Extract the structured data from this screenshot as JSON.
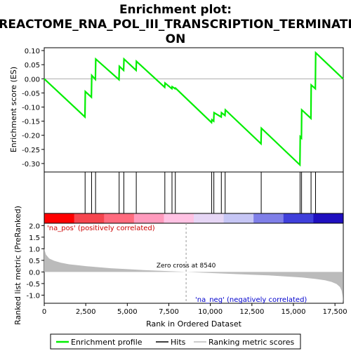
{
  "chart_data": {
    "type": "line",
    "title": "Enrichment plot: REACTOME_RNA_POL_III_TRANSCRIPTION_TERMINATION",
    "title_lines": [
      "Enrichment plot:",
      "REACTOME_RNA_POL_III_TRANSCRIPTION_TERMINATI",
      "ON"
    ],
    "top_panel": {
      "ylabel": "Enrichment score (ES)",
      "ylim": [
        -0.33,
        0.11
      ],
      "yticks": [
        0.1,
        0.05,
        0.0,
        -0.05,
        -0.1,
        -0.15,
        -0.2,
        -0.25,
        -0.3
      ],
      "ytick_labels": [
        "0.10",
        "0.05",
        "0.00",
        "-0.05",
        "-0.10",
        "-0.15",
        "-0.20",
        "-0.25",
        "-0.30"
      ],
      "series": [
        {
          "name": "Enrichment profile",
          "color": "#00ee00",
          "points": [
            [
              0,
              0.0
            ],
            [
              2450,
              -0.135
            ],
            [
              2470,
              -0.045
            ],
            [
              2840,
              -0.065
            ],
            [
              2860,
              0.012
            ],
            [
              3080,
              -0.002
            ],
            [
              3100,
              0.07
            ],
            [
              4500,
              -0.003
            ],
            [
              4520,
              0.044
            ],
            [
              4780,
              0.03
            ],
            [
              4800,
              0.07
            ],
            [
              5530,
              0.03
            ],
            [
              5550,
              0.062
            ],
            [
              7250,
              -0.03
            ],
            [
              7270,
              -0.015
            ],
            [
              7680,
              -0.035
            ],
            [
              7700,
              -0.028
            ],
            [
              7880,
              -0.035
            ],
            [
              7900,
              -0.033
            ],
            [
              10070,
              -0.155
            ],
            [
              10090,
              -0.145
            ],
            [
              10200,
              -0.15
            ],
            [
              10220,
              -0.12
            ],
            [
              10650,
              -0.135
            ],
            [
              10670,
              -0.12
            ],
            [
              10880,
              -0.13
            ],
            [
              10900,
              -0.11
            ],
            [
              13050,
              -0.23
            ],
            [
              13070,
              -0.175
            ],
            [
              15390,
              -0.305
            ],
            [
              15410,
              -0.205
            ],
            [
              15480,
              -0.21
            ],
            [
              15500,
              -0.11
            ],
            [
              16050,
              -0.14
            ],
            [
              16070,
              -0.022
            ],
            [
              16320,
              -0.035
            ],
            [
              16340,
              0.092
            ],
            [
              17990,
              0.0
            ]
          ]
        }
      ]
    },
    "hits": [
      2460,
      2850,
      3090,
      4510,
      4790,
      5540,
      7260,
      7690,
      7890,
      10080,
      10210,
      10660,
      10890,
      13060,
      15400,
      15490,
      16060,
      16330
    ],
    "rank_colorbar": [
      "#ff0000",
      "#f5454e",
      "#ff6b7e",
      "#ff9bbd",
      "#ffc2e3",
      "#e6d6f5",
      "#c6c6f5",
      "#7f7fe8",
      "#3f3fdb",
      "#1f0fbf"
    ],
    "bottom_panel": {
      "ylabel": "Ranked list metric (PreRanked)",
      "ylim": [
        -1.35,
        2.1
      ],
      "yticks": [
        2.0,
        1.5,
        1.0,
        0.5,
        0.0,
        -0.5,
        -1.0
      ],
      "ytick_labels": [
        "2.0",
        "1.5",
        "1.0",
        "0.5",
        "0.0",
        "-0.5",
        "-1.0"
      ],
      "metric_curve": [
        [
          0,
          1.0
        ],
        [
          100,
          0.75
        ],
        [
          300,
          0.58
        ],
        [
          600,
          0.48
        ],
        [
          1000,
          0.4
        ],
        [
          1500,
          0.33
        ],
        [
          2000,
          0.29
        ],
        [
          2500,
          0.25
        ],
        [
          3000,
          0.22
        ],
        [
          4000,
          0.16
        ],
        [
          5000,
          0.12
        ],
        [
          6000,
          0.08
        ],
        [
          7000,
          0.05
        ],
        [
          8000,
          0.02
        ],
        [
          8540,
          0.0
        ],
        [
          9500,
          -0.03
        ],
        [
          10500,
          -0.06
        ],
        [
          11500,
          -0.09
        ],
        [
          12500,
          -0.12
        ],
        [
          13500,
          -0.15
        ],
        [
          14500,
          -0.19
        ],
        [
          15500,
          -0.24
        ],
        [
          16300,
          -0.3
        ],
        [
          16900,
          -0.36
        ],
        [
          17300,
          -0.43
        ],
        [
          17600,
          -0.52
        ],
        [
          17800,
          -0.65
        ],
        [
          17900,
          -0.8
        ],
        [
          17960,
          -1.05
        ],
        [
          17990,
          -1.3
        ]
      ],
      "pos_label": "'na_pos' (positively correlated)",
      "neg_label": "'na_neg' (negatively correlated)",
      "zero_cross_label": "Zero cross at 8540",
      "zero_cross": 8540
    },
    "xlabel": "Rank in Ordered Dataset",
    "xlim": [
      0,
      18000
    ],
    "xticks": [
      0,
      2500,
      5000,
      7500,
      10000,
      12500,
      15000,
      17500
    ],
    "xtick_labels": [
      "0",
      "2,500",
      "5,000",
      "7,500",
      "10,000",
      "12,500",
      "15,000",
      "17,500"
    ],
    "legend": {
      "placement": "bottom",
      "items": [
        {
          "label": "Enrichment profile",
          "color": "#00ee00"
        },
        {
          "label": "Hits",
          "color": "#000000"
        },
        {
          "label": "Ranking metric scores",
          "color": "#bbbbbb"
        }
      ]
    }
  }
}
